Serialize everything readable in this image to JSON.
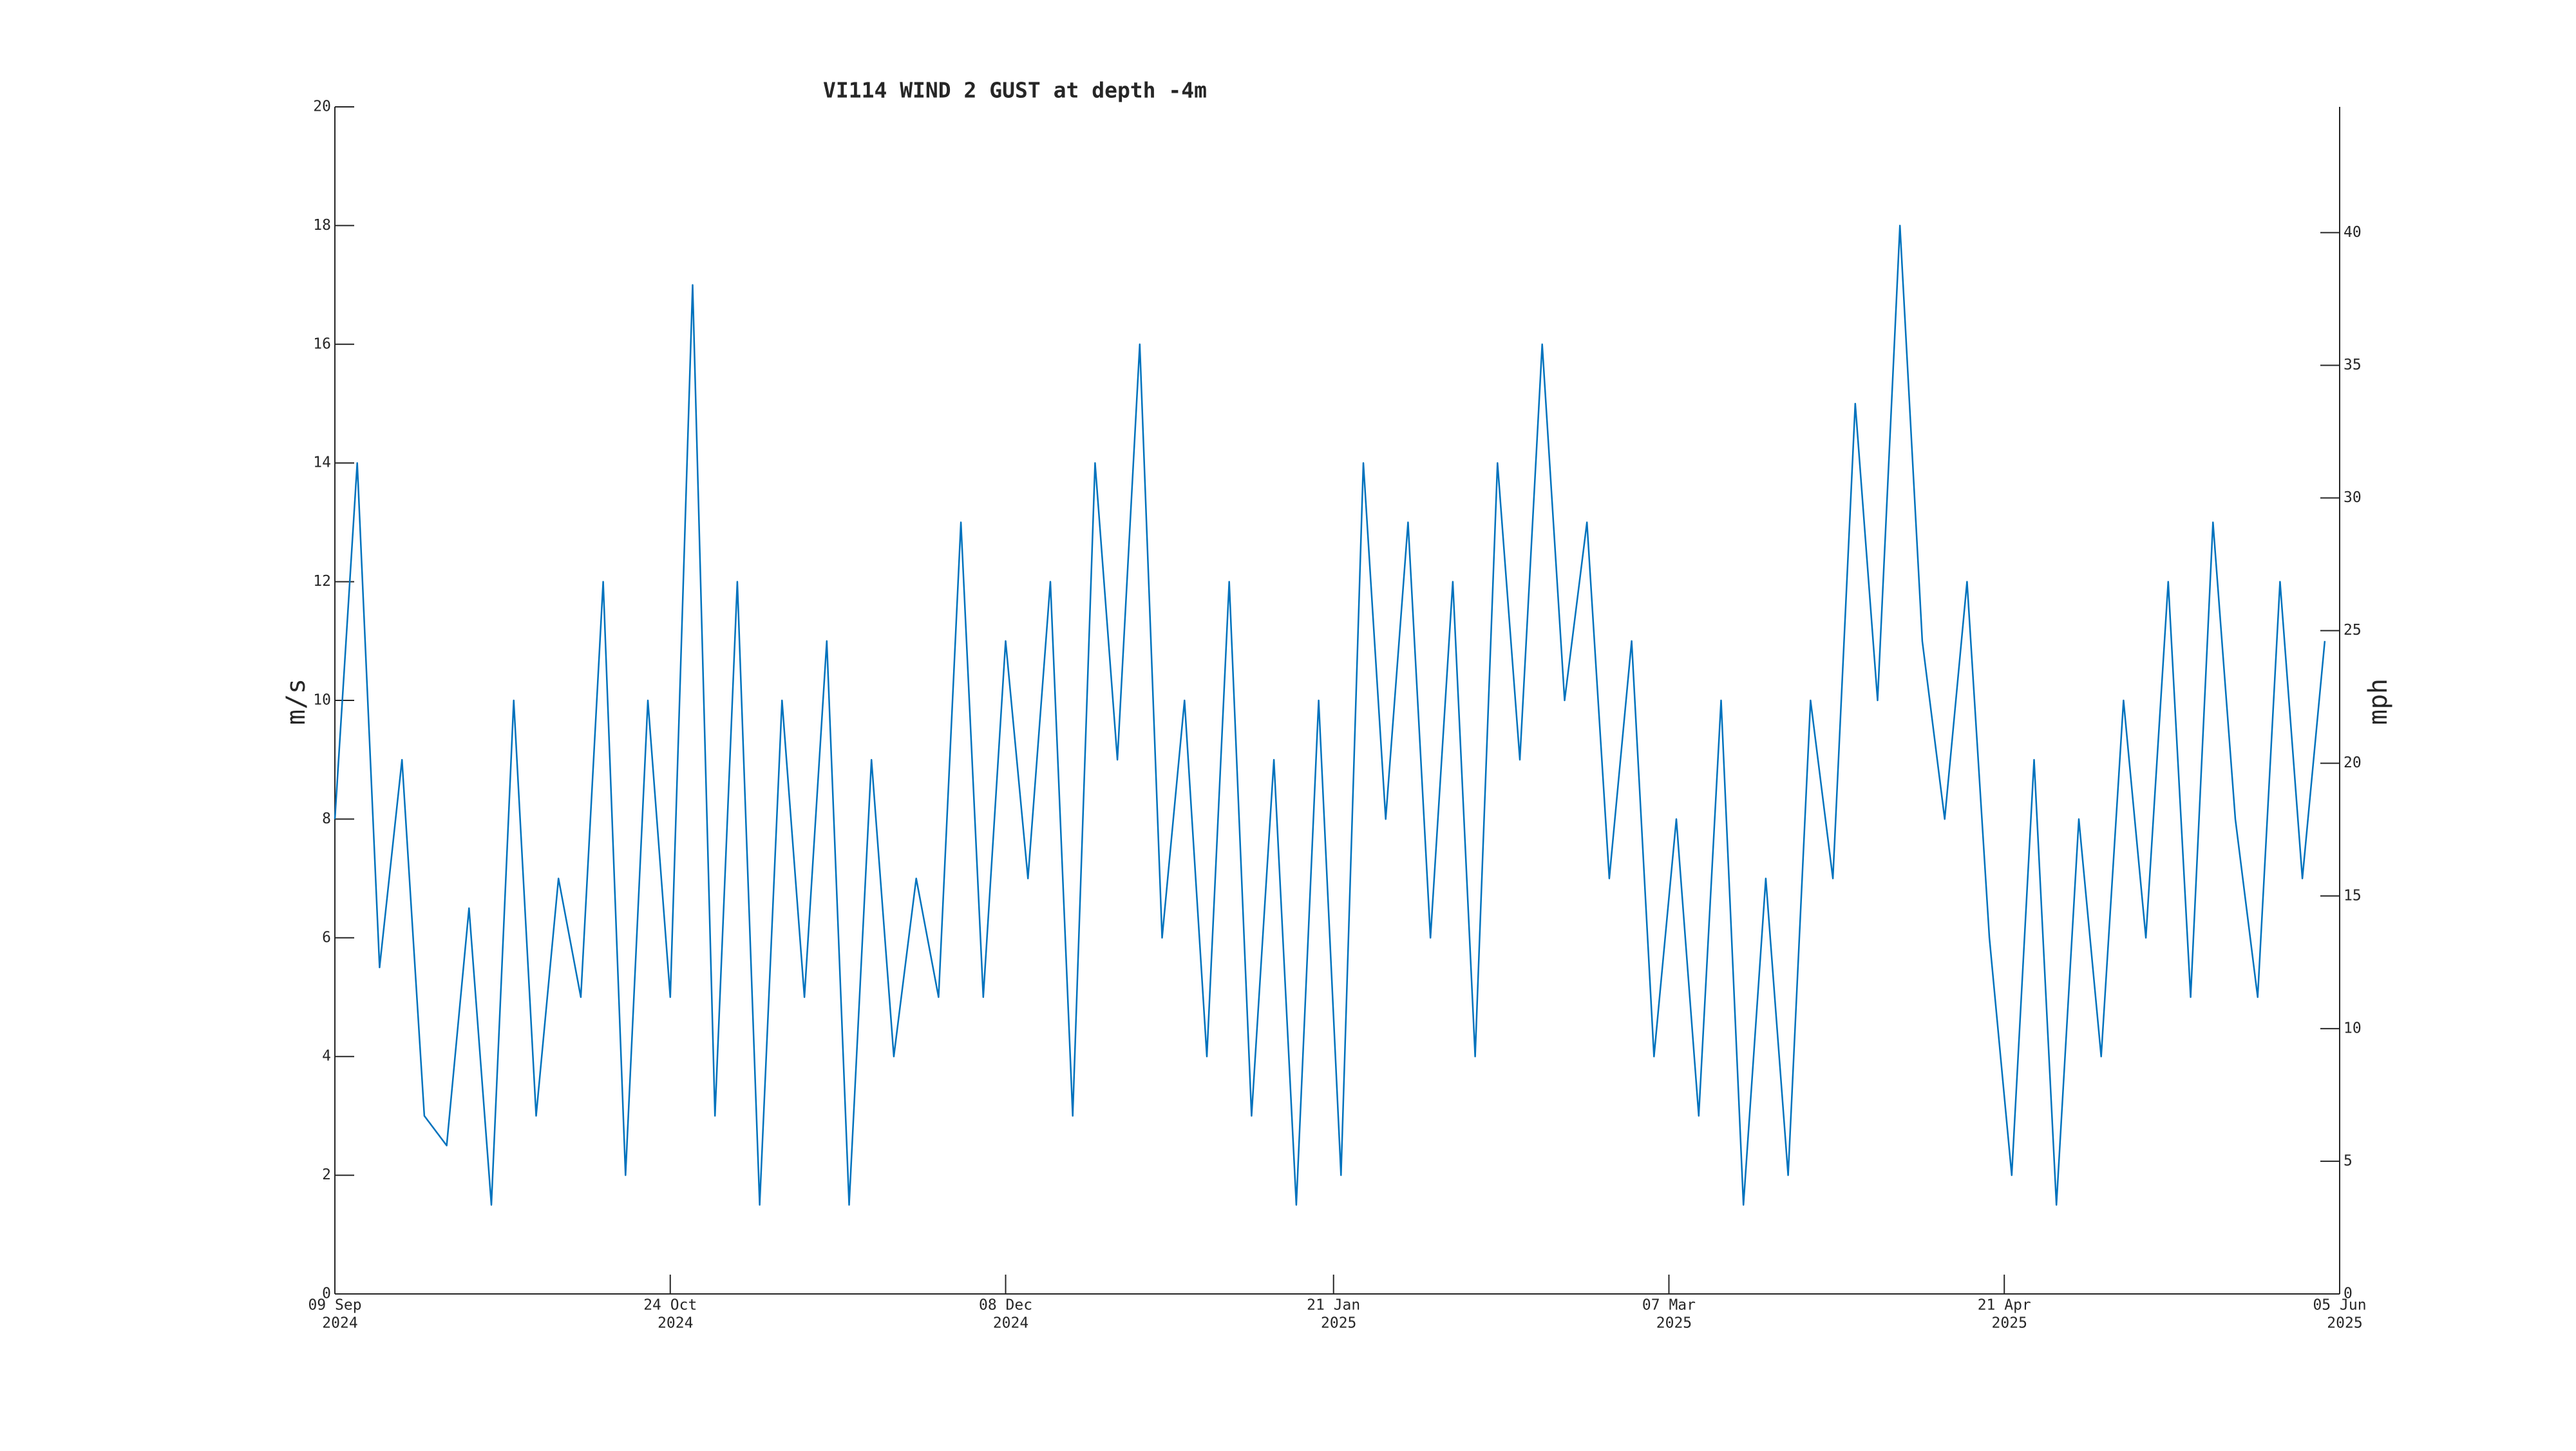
{
  "chart_data": {
    "type": "line",
    "title": "VI114 WIND 2 GUST at depth -4m",
    "y_label": "m/s",
    "y2_label": "mph",
    "x": [
      "2024-09-09",
      "2024-09-12",
      "2024-09-15",
      "2024-09-18",
      "2024-09-21",
      "2024-09-24",
      "2024-09-27",
      "2024-09-30",
      "2024-10-03",
      "2024-10-06",
      "2024-10-09",
      "2024-10-12",
      "2024-10-15",
      "2024-10-18",
      "2024-10-21",
      "2024-10-24",
      "2024-10-27",
      "2024-10-30",
      "2024-11-02",
      "2024-11-05",
      "2024-11-08",
      "2024-11-11",
      "2024-11-14",
      "2024-11-17",
      "2024-11-20",
      "2024-11-23",
      "2024-11-26",
      "2024-11-29",
      "2024-12-02",
      "2024-12-05",
      "2024-12-08",
      "2024-12-11",
      "2024-12-14",
      "2024-12-17",
      "2024-12-20",
      "2024-12-23",
      "2024-12-26",
      "2024-12-29",
      "2025-01-01",
      "2025-01-04",
      "2025-01-07",
      "2025-01-10",
      "2025-01-13",
      "2025-01-16",
      "2025-01-19",
      "2025-01-22",
      "2025-01-25",
      "2025-01-28",
      "2025-01-31",
      "2025-02-03",
      "2025-02-06",
      "2025-02-09",
      "2025-02-12",
      "2025-02-15",
      "2025-02-18",
      "2025-02-21",
      "2025-02-24",
      "2025-02-27",
      "2025-03-02",
      "2025-03-05",
      "2025-03-08",
      "2025-03-11",
      "2025-03-14",
      "2025-03-17",
      "2025-03-20",
      "2025-03-23",
      "2025-03-26",
      "2025-03-29",
      "2025-04-01",
      "2025-04-04",
      "2025-04-07",
      "2025-04-10",
      "2025-04-13",
      "2025-04-16",
      "2025-04-19",
      "2025-04-22",
      "2025-04-25",
      "2025-04-28",
      "2025-05-01",
      "2025-05-04",
      "2025-05-07",
      "2025-05-10",
      "2025-05-13",
      "2025-05-16",
      "2025-05-19",
      "2025-05-22",
      "2025-05-25",
      "2025-05-28",
      "2025-05-31",
      "2025-06-03"
    ],
    "series": [
      {
        "color": "#0072bd",
        "values": [
          8,
          14,
          5.5,
          9,
          3,
          2.5,
          6.5,
          1.5,
          10,
          3,
          7,
          5,
          12,
          2,
          10,
          5,
          17,
          3,
          12,
          1.5,
          10,
          5,
          11,
          1.5,
          9,
          4,
          7,
          5,
          13,
          5,
          11,
          7,
          12,
          3,
          14,
          9,
          16,
          6,
          10,
          4,
          12,
          3,
          9,
          1.5,
          10,
          2,
          14,
          8,
          13,
          6,
          12,
          4,
          14,
          9,
          16,
          10,
          13,
          7,
          11,
          4,
          8,
          3,
          10,
          1.5,
          7,
          2,
          10,
          7,
          15,
          10,
          18,
          11,
          8,
          12,
          6,
          2,
          9,
          1.5,
          8,
          4,
          10,
          6,
          12,
          5,
          13,
          8,
          5,
          12,
          7,
          11
        ]
      }
    ],
    "xlim": [
      "2024-09-09",
      "2025-06-05"
    ],
    "xticks": [
      {
        "value": "2024-09-09",
        "label": [
          "09 Sep",
          "2024"
        ]
      },
      {
        "value": "2024-10-24",
        "label": [
          "24 Oct",
          "2024"
        ]
      },
      {
        "value": "2024-12-08",
        "label": [
          "08 Dec",
          "2024"
        ]
      },
      {
        "value": "2025-01-21",
        "label": [
          "21 Jan",
          "2025"
        ]
      },
      {
        "value": "2025-03-07",
        "label": [
          "07 Mar",
          "2025"
        ]
      },
      {
        "value": "2025-04-21",
        "label": [
          "21 Apr",
          "2025"
        ]
      },
      {
        "value": "2025-06-05",
        "label": [
          "05 Jun",
          "2025"
        ]
      }
    ],
    "ylim": [
      0,
      20
    ],
    "yticks": [
      0,
      2,
      4,
      6,
      8,
      10,
      12,
      14,
      16,
      18,
      20
    ],
    "y2lim": [
      0,
      44.74
    ],
    "y2ticks": [
      0,
      5,
      10,
      15,
      20,
      25,
      30,
      35,
      40
    ],
    "grid": false
  }
}
